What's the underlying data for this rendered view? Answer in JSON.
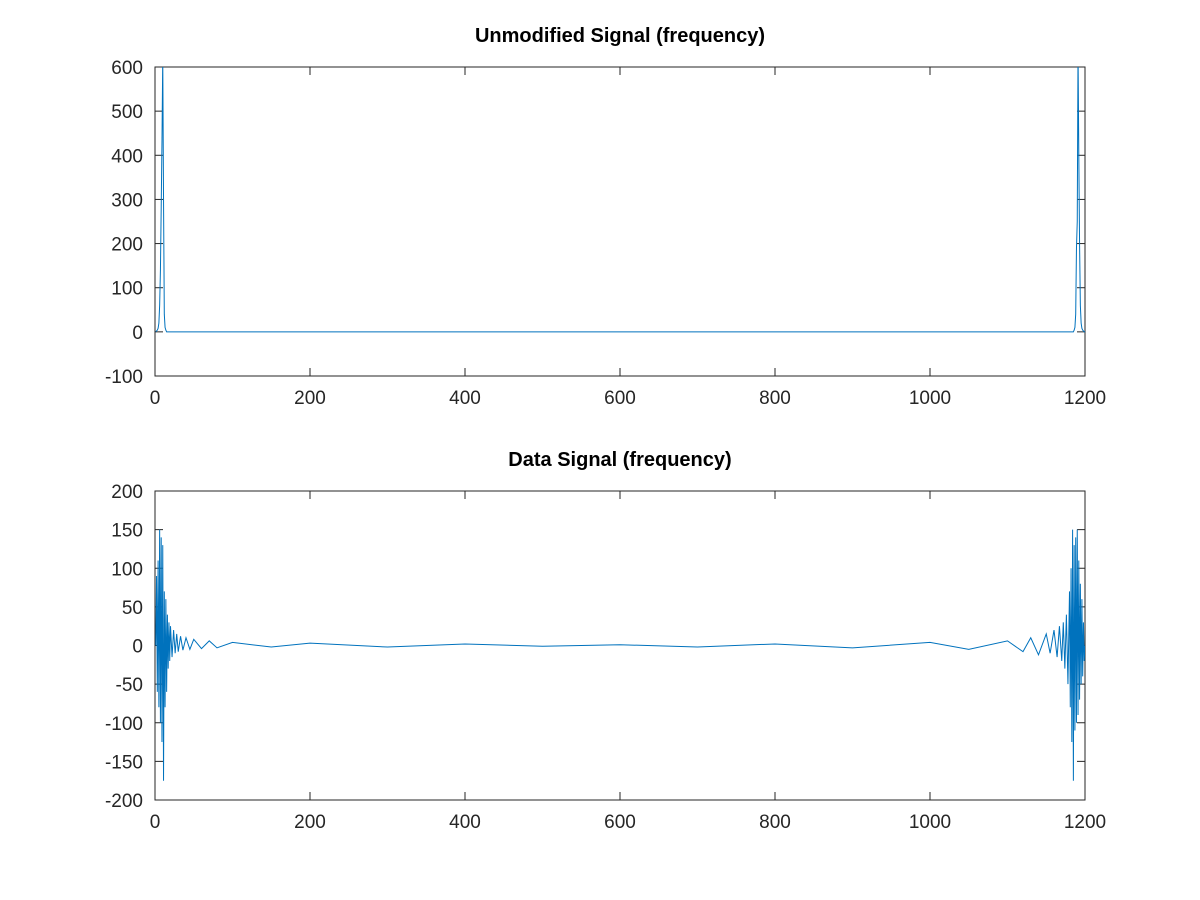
{
  "chart_data": [
    {
      "type": "line",
      "title": "Unmodified Signal (frequency)",
      "xlabel": "",
      "ylabel": "",
      "xlim": [
        0,
        1200
      ],
      "ylim": [
        -100,
        600
      ],
      "xticks": [
        0,
        200,
        400,
        600,
        800,
        1000,
        1200
      ],
      "yticks": [
        -100,
        0,
        100,
        200,
        300,
        400,
        500,
        600
      ],
      "grid": false,
      "color": "#0072bd",
      "series": [
        {
          "x": [
            1,
            2,
            3,
            4,
            5,
            6,
            7,
            8,
            9,
            10,
            11,
            12,
            13,
            14,
            15,
            100,
            300,
            500,
            700,
            900,
            1100,
            1185,
            1186,
            1187,
            1188,
            1189,
            1190,
            1191,
            1192,
            1193,
            1194,
            1195,
            1196,
            1197,
            1198,
            1199,
            1200
          ],
          "y": [
            0,
            2,
            4,
            8,
            20,
            60,
            140,
            280,
            430,
            620,
            300,
            40,
            10,
            4,
            0,
            0,
            0,
            0,
            0,
            0,
            0,
            0,
            4,
            10,
            40,
            190,
            250,
            640,
            400,
            200,
            60,
            20,
            8,
            4,
            2,
            0,
            0
          ]
        }
      ]
    },
    {
      "type": "line",
      "title": "Data Signal (frequency)",
      "xlabel": "",
      "ylabel": "",
      "xlim": [
        0,
        1200
      ],
      "ylim": [
        -200,
        200
      ],
      "xticks": [
        0,
        200,
        400,
        600,
        800,
        1000,
        1200
      ],
      "yticks": [
        -200,
        -150,
        -100,
        -50,
        0,
        50,
        100,
        150,
        200
      ],
      "grid": false,
      "color": "#0072bd",
      "series": [
        {
          "x": [
            1,
            2,
            3,
            4,
            5,
            6,
            7,
            8,
            9,
            10,
            11,
            12,
            13,
            14,
            15,
            16,
            17,
            18,
            19,
            20,
            22,
            24,
            26,
            28,
            30,
            33,
            36,
            40,
            45,
            50,
            60,
            70,
            80,
            100,
            150,
            200,
            300,
            400,
            500,
            600,
            700,
            800,
            900,
            1000,
            1050,
            1100,
            1120,
            1130,
            1140,
            1150,
            1155,
            1160,
            1164,
            1167,
            1170,
            1172,
            1174,
            1176,
            1178,
            1180,
            1181,
            1182,
            1183,
            1184,
            1185,
            1186,
            1187,
            1188,
            1189,
            1190,
            1191,
            1192,
            1193,
            1194,
            1195,
            1196,
            1197,
            1198,
            1199,
            1200
          ],
          "y": [
            0,
            90,
            -60,
            110,
            -80,
            150,
            -100,
            140,
            -125,
            130,
            -175,
            70,
            -80,
            60,
            -60,
            40,
            -30,
            30,
            -20,
            25,
            -15,
            20,
            -10,
            15,
            -8,
            12,
            -6,
            10,
            -5,
            8,
            -4,
            6,
            -3,
            4,
            -2,
            3,
            -2,
            2,
            -1,
            1,
            -2,
            2,
            -3,
            4,
            -5,
            6,
            -8,
            10,
            -12,
            15,
            -10,
            20,
            -15,
            25,
            -20,
            30,
            -30,
            40,
            -50,
            70,
            -80,
            100,
            -125,
            150,
            -175,
            130,
            -110,
            140,
            -100,
            150,
            -90,
            110,
            -70,
            80,
            -50,
            60,
            -40,
            30,
            -20,
            0
          ]
        }
      ]
    }
  ]
}
